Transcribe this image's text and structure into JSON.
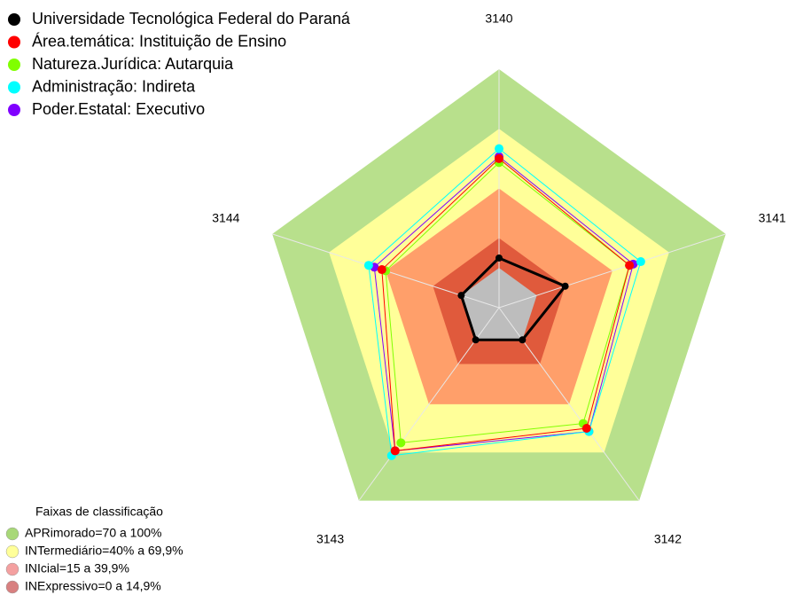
{
  "chart_data": {
    "type": "radar",
    "categories": [
      "3140",
      "3141",
      "3142",
      "3143",
      "3144"
    ],
    "rlim": [
      -20,
      100
    ],
    "series": [
      {
        "name": "Universidade Tecnológica Federal do Paraná",
        "color": "#000000",
        "values": [
          5,
          15,
          0,
          0,
          0
        ]
      },
      {
        "name": "Área.temática: Instituição de Ensino",
        "color": "#ff0000",
        "values": [
          55,
          49,
          55,
          69,
          42
        ]
      },
      {
        "name": "Natureza.Jurídica: Autarquia",
        "color": "#80ff00",
        "values": [
          53,
          49,
          52,
          64,
          40
        ]
      },
      {
        "name": "Administração: Indireta",
        "color": "#00ffff",
        "values": [
          60,
          55,
          57,
          72,
          49
        ]
      },
      {
        "name": "Poder.Estatal: Executivo",
        "color": "#8000ff",
        "values": [
          56,
          51,
          57,
          69,
          46
        ]
      }
    ],
    "bands_title": "Faixas de classificação",
    "bands": [
      {
        "label": "APRimorado=70 a 100%",
        "range": [
          70,
          100
        ],
        "color": "#b8e08c",
        "legend_color": "#a8d878"
      },
      {
        "label": "INTermediário=40% a 69,9%",
        "range": [
          40,
          70
        ],
        "color": "#ffff99",
        "legend_color": "#ffff99"
      },
      {
        "label": "INIcial=15 a 39,9%",
        "range": [
          15,
          40
        ],
        "color": "#ff9f6a",
        "legend_color": "#f4a0a0"
      },
      {
        "label": "INExpressivo=0 a 14,9%",
        "range": [
          0,
          15
        ],
        "color": "#e05a3c",
        "legend_color": "#d88080"
      }
    ]
  }
}
